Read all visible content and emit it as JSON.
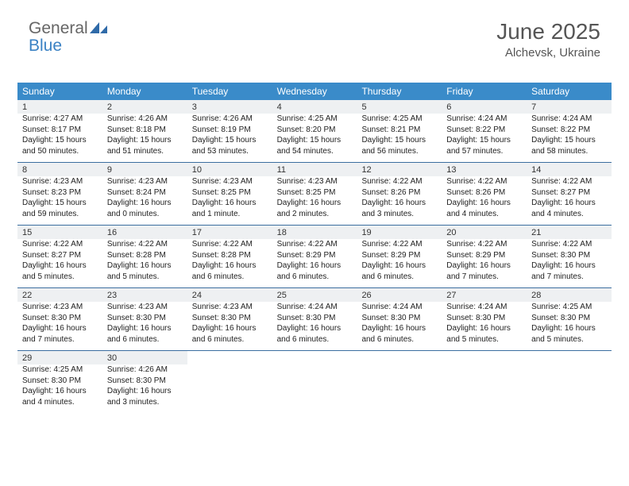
{
  "logo": {
    "part1": "General",
    "part2": "Blue"
  },
  "title": "June 2025",
  "location": "Alchevsk, Ukraine",
  "colors": {
    "header_bg": "#3a8bc9",
    "daynum_bg": "#eef0f2",
    "week_border": "#3b6ea0",
    "text": "#222222",
    "title_text": "#555555"
  },
  "day_headers": [
    "Sunday",
    "Monday",
    "Tuesday",
    "Wednesday",
    "Thursday",
    "Friday",
    "Saturday"
  ],
  "weeks": [
    [
      {
        "n": "1",
        "sr": "Sunrise: 4:27 AM",
        "ss": "Sunset: 8:17 PM",
        "dl": "Daylight: 15 hours and 50 minutes."
      },
      {
        "n": "2",
        "sr": "Sunrise: 4:26 AM",
        "ss": "Sunset: 8:18 PM",
        "dl": "Daylight: 15 hours and 51 minutes."
      },
      {
        "n": "3",
        "sr": "Sunrise: 4:26 AM",
        "ss": "Sunset: 8:19 PM",
        "dl": "Daylight: 15 hours and 53 minutes."
      },
      {
        "n": "4",
        "sr": "Sunrise: 4:25 AM",
        "ss": "Sunset: 8:20 PM",
        "dl": "Daylight: 15 hours and 54 minutes."
      },
      {
        "n": "5",
        "sr": "Sunrise: 4:25 AM",
        "ss": "Sunset: 8:21 PM",
        "dl": "Daylight: 15 hours and 56 minutes."
      },
      {
        "n": "6",
        "sr": "Sunrise: 4:24 AM",
        "ss": "Sunset: 8:22 PM",
        "dl": "Daylight: 15 hours and 57 minutes."
      },
      {
        "n": "7",
        "sr": "Sunrise: 4:24 AM",
        "ss": "Sunset: 8:22 PM",
        "dl": "Daylight: 15 hours and 58 minutes."
      }
    ],
    [
      {
        "n": "8",
        "sr": "Sunrise: 4:23 AM",
        "ss": "Sunset: 8:23 PM",
        "dl": "Daylight: 15 hours and 59 minutes."
      },
      {
        "n": "9",
        "sr": "Sunrise: 4:23 AM",
        "ss": "Sunset: 8:24 PM",
        "dl": "Daylight: 16 hours and 0 minutes."
      },
      {
        "n": "10",
        "sr": "Sunrise: 4:23 AM",
        "ss": "Sunset: 8:25 PM",
        "dl": "Daylight: 16 hours and 1 minute."
      },
      {
        "n": "11",
        "sr": "Sunrise: 4:23 AM",
        "ss": "Sunset: 8:25 PM",
        "dl": "Daylight: 16 hours and 2 minutes."
      },
      {
        "n": "12",
        "sr": "Sunrise: 4:22 AM",
        "ss": "Sunset: 8:26 PM",
        "dl": "Daylight: 16 hours and 3 minutes."
      },
      {
        "n": "13",
        "sr": "Sunrise: 4:22 AM",
        "ss": "Sunset: 8:26 PM",
        "dl": "Daylight: 16 hours and 4 minutes."
      },
      {
        "n": "14",
        "sr": "Sunrise: 4:22 AM",
        "ss": "Sunset: 8:27 PM",
        "dl": "Daylight: 16 hours and 4 minutes."
      }
    ],
    [
      {
        "n": "15",
        "sr": "Sunrise: 4:22 AM",
        "ss": "Sunset: 8:27 PM",
        "dl": "Daylight: 16 hours and 5 minutes."
      },
      {
        "n": "16",
        "sr": "Sunrise: 4:22 AM",
        "ss": "Sunset: 8:28 PM",
        "dl": "Daylight: 16 hours and 5 minutes."
      },
      {
        "n": "17",
        "sr": "Sunrise: 4:22 AM",
        "ss": "Sunset: 8:28 PM",
        "dl": "Daylight: 16 hours and 6 minutes."
      },
      {
        "n": "18",
        "sr": "Sunrise: 4:22 AM",
        "ss": "Sunset: 8:29 PM",
        "dl": "Daylight: 16 hours and 6 minutes."
      },
      {
        "n": "19",
        "sr": "Sunrise: 4:22 AM",
        "ss": "Sunset: 8:29 PM",
        "dl": "Daylight: 16 hours and 6 minutes."
      },
      {
        "n": "20",
        "sr": "Sunrise: 4:22 AM",
        "ss": "Sunset: 8:29 PM",
        "dl": "Daylight: 16 hours and 7 minutes."
      },
      {
        "n": "21",
        "sr": "Sunrise: 4:22 AM",
        "ss": "Sunset: 8:30 PM",
        "dl": "Daylight: 16 hours and 7 minutes."
      }
    ],
    [
      {
        "n": "22",
        "sr": "Sunrise: 4:23 AM",
        "ss": "Sunset: 8:30 PM",
        "dl": "Daylight: 16 hours and 7 minutes."
      },
      {
        "n": "23",
        "sr": "Sunrise: 4:23 AM",
        "ss": "Sunset: 8:30 PM",
        "dl": "Daylight: 16 hours and 6 minutes."
      },
      {
        "n": "24",
        "sr": "Sunrise: 4:23 AM",
        "ss": "Sunset: 8:30 PM",
        "dl": "Daylight: 16 hours and 6 minutes."
      },
      {
        "n": "25",
        "sr": "Sunrise: 4:24 AM",
        "ss": "Sunset: 8:30 PM",
        "dl": "Daylight: 16 hours and 6 minutes."
      },
      {
        "n": "26",
        "sr": "Sunrise: 4:24 AM",
        "ss": "Sunset: 8:30 PM",
        "dl": "Daylight: 16 hours and 6 minutes."
      },
      {
        "n": "27",
        "sr": "Sunrise: 4:24 AM",
        "ss": "Sunset: 8:30 PM",
        "dl": "Daylight: 16 hours and 5 minutes."
      },
      {
        "n": "28",
        "sr": "Sunrise: 4:25 AM",
        "ss": "Sunset: 8:30 PM",
        "dl": "Daylight: 16 hours and 5 minutes."
      }
    ],
    [
      {
        "n": "29",
        "sr": "Sunrise: 4:25 AM",
        "ss": "Sunset: 8:30 PM",
        "dl": "Daylight: 16 hours and 4 minutes."
      },
      {
        "n": "30",
        "sr": "Sunrise: 4:26 AM",
        "ss": "Sunset: 8:30 PM",
        "dl": "Daylight: 16 hours and 3 minutes."
      },
      null,
      null,
      null,
      null,
      null
    ]
  ]
}
